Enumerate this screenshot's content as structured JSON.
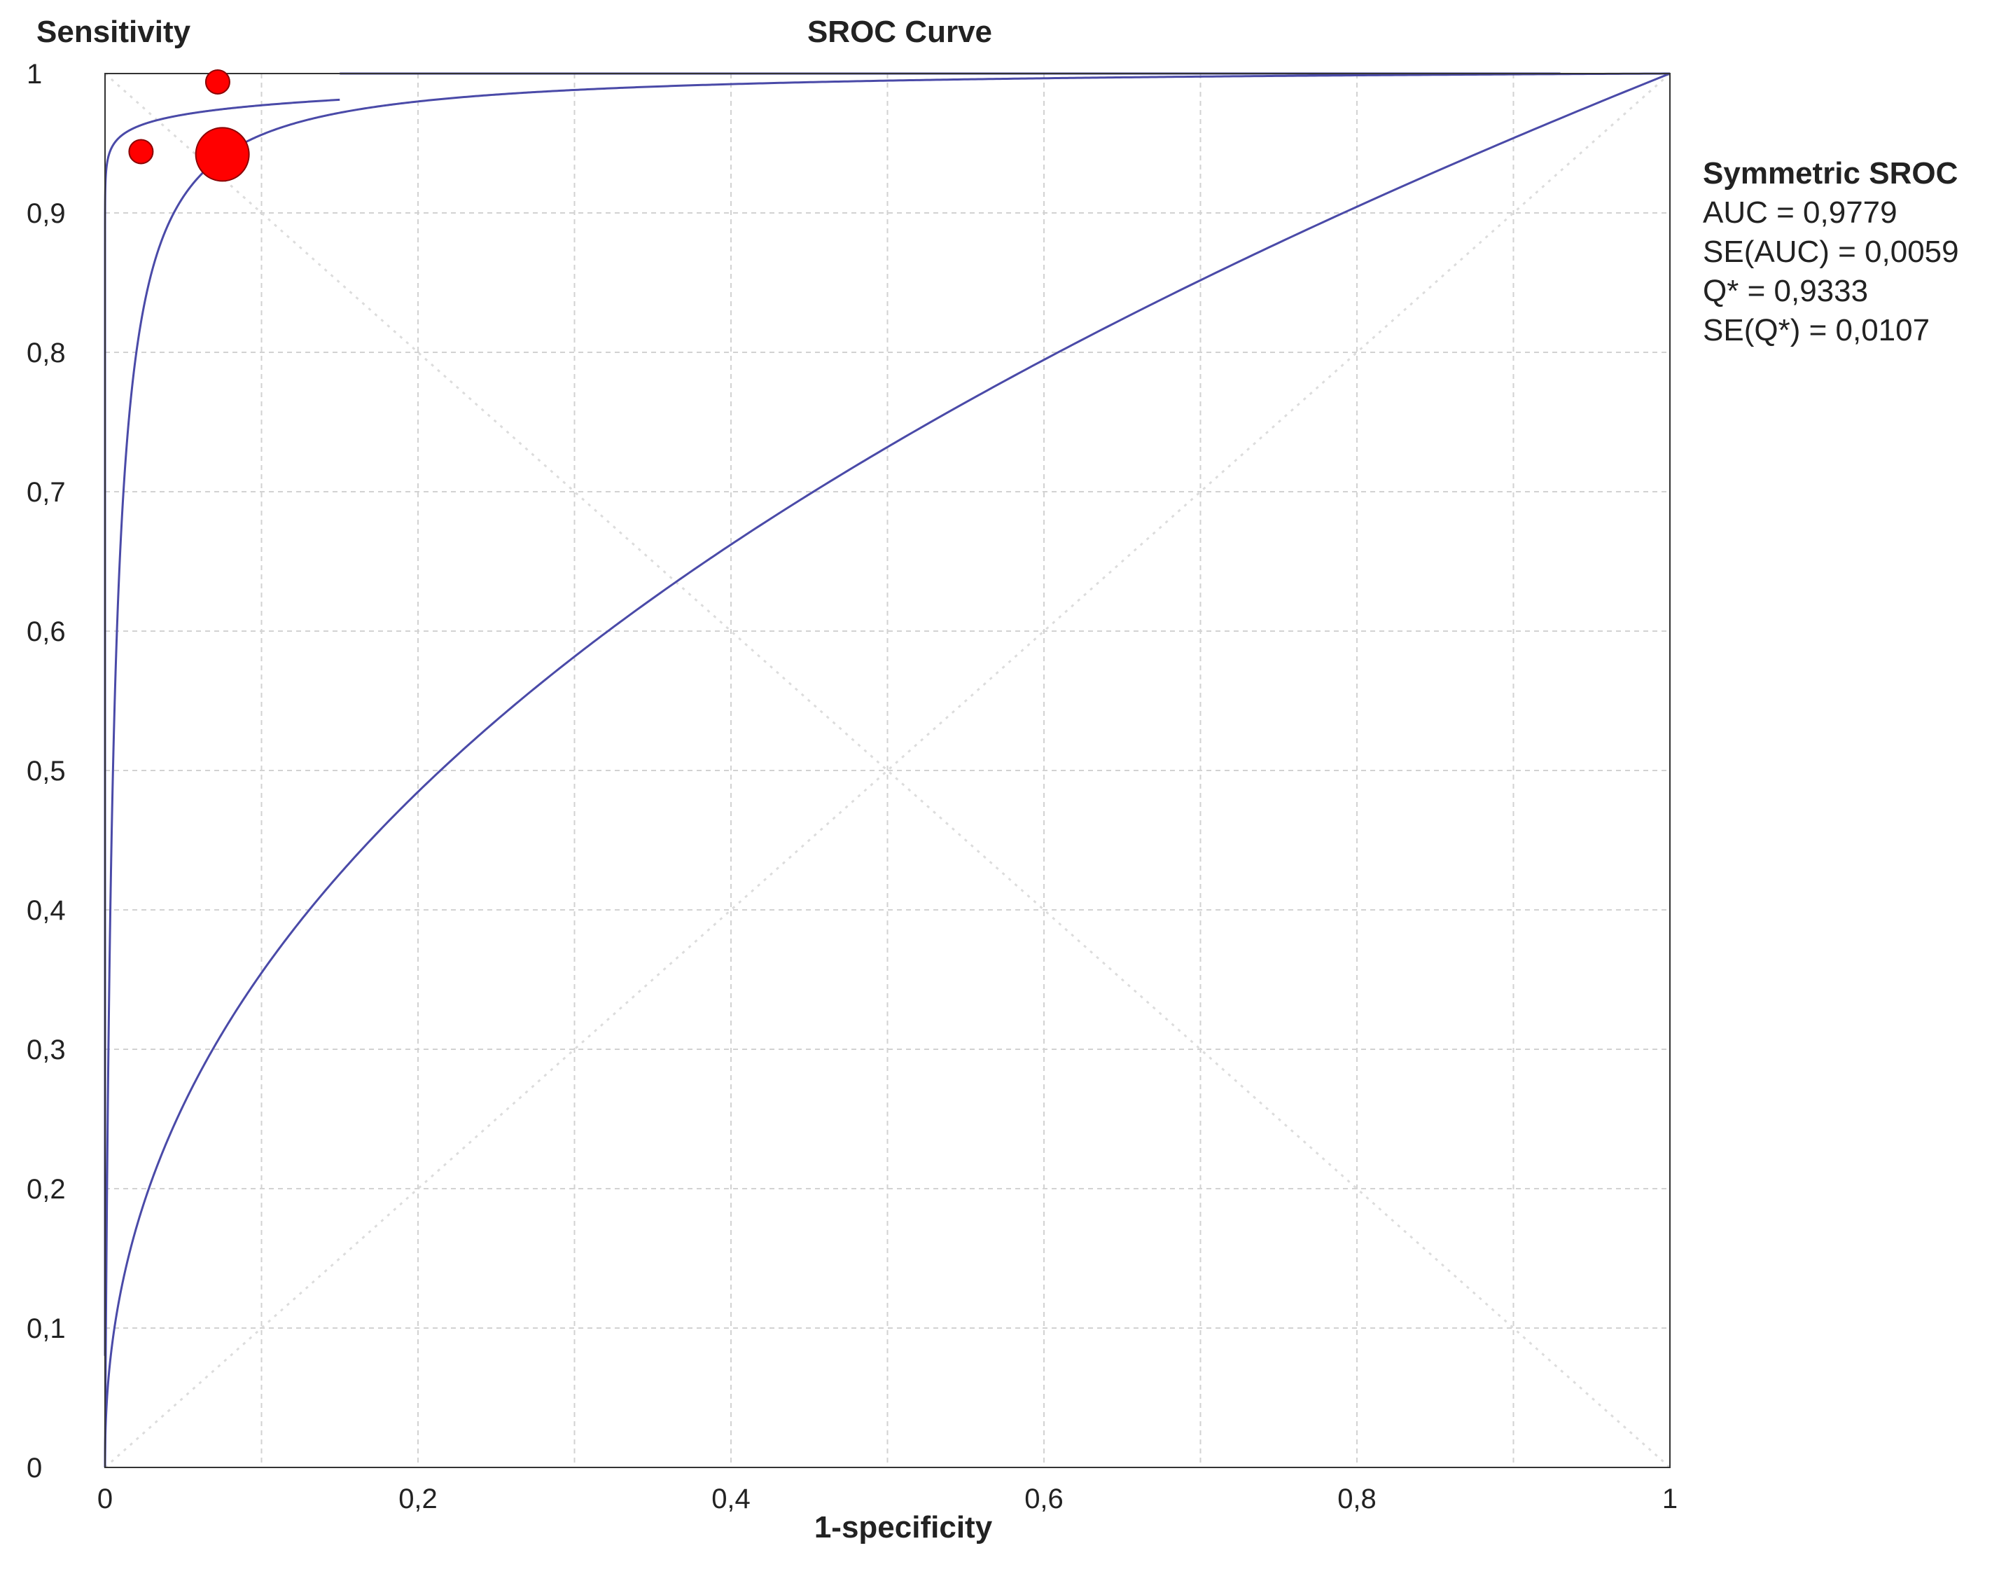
{
  "chart_data": {
    "type": "scatter",
    "title": "SROC Curve",
    "xlabel": "1-specificity",
    "ylabel": "Sensitivity",
    "xlim": [
      0,
      1
    ],
    "ylim": [
      0,
      1
    ],
    "x_ticks": [
      "0",
      "0,2",
      "0,4",
      "0,6",
      "0,8",
      "1"
    ],
    "y_ticks": [
      "0",
      "0,1",
      "0,2",
      "0,3",
      "0,4",
      "0,5",
      "0,6",
      "0,7",
      "0,8",
      "0,9",
      "1"
    ],
    "grid": true,
    "studies": [
      {
        "x": 0.072,
        "y": 0.994,
        "weight": "small"
      },
      {
        "x": 0.023,
        "y": 0.944,
        "weight": "small"
      },
      {
        "x": 0.075,
        "y": 0.942,
        "weight": "large"
      }
    ],
    "curves": {
      "sroc_auc": 0.9779,
      "upper_ci_beta": 0.01,
      "lower_ci_beta": 0.45
    },
    "colors": {
      "curve": "#4a4aa8",
      "points": "#ff0000",
      "point_edge": "#8a0000",
      "grid": "#d2d2d2",
      "frame": "#333333"
    },
    "stats": {
      "title": "Symmetric SROC",
      "lines": [
        "AUC = 0,9779",
        "SE(AUC) = 0,0059",
        "Q* = 0,9333",
        "SE(Q*) = 0,0107"
      ]
    }
  }
}
